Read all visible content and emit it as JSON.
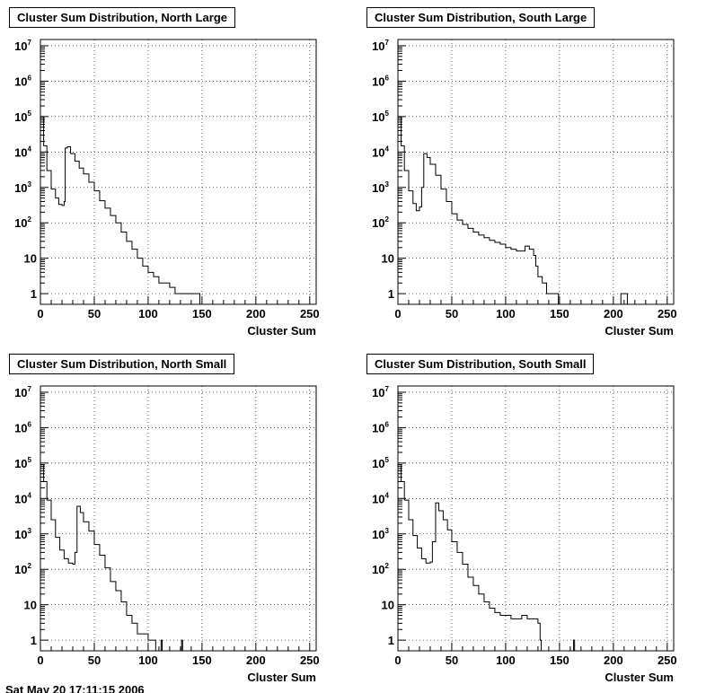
{
  "footer_text": "Sat May 20 17:11:15 2006",
  "chart_data": [
    {
      "type": "histogram",
      "title": "Cluster Sum Distribution, North Large",
      "xlabel": "Cluster Sum",
      "ylabel": "",
      "xlim": [
        0,
        256
      ],
      "ylim": [
        0.5,
        15000000
      ],
      "log_y": true,
      "grid": true,
      "x_ticks": [
        0,
        50,
        100,
        150,
        200,
        250
      ],
      "y_ticks": [
        "1",
        "10",
        "10^2",
        "10^3",
        "10^4",
        "10^5",
        "10^6",
        "10^7"
      ],
      "points": [
        [
          0,
          100000
        ],
        [
          3,
          15000
        ],
        [
          6,
          3000
        ],
        [
          10,
          900
        ],
        [
          14,
          500
        ],
        [
          17,
          330
        ],
        [
          20,
          310
        ],
        [
          22,
          400
        ],
        [
          23,
          13000
        ],
        [
          25,
          14000
        ],
        [
          28,
          9000
        ],
        [
          32,
          5500
        ],
        [
          36,
          3500
        ],
        [
          40,
          2400
        ],
        [
          45,
          1400
        ],
        [
          50,
          800
        ],
        [
          55,
          420
        ],
        [
          60,
          260
        ],
        [
          65,
          160
        ],
        [
          70,
          100
        ],
        [
          75,
          55
        ],
        [
          80,
          30
        ],
        [
          85,
          18
        ],
        [
          90,
          10
        ],
        [
          95,
          6
        ],
        [
          100,
          4
        ],
        [
          105,
          3
        ],
        [
          110,
          2
        ],
        [
          115,
          2
        ],
        [
          120,
          1.5
        ],
        [
          125,
          1
        ],
        [
          130,
          1
        ],
        [
          140,
          1
        ],
        [
          147,
          1
        ],
        [
          148,
          0.5
        ],
        [
          256,
          0.5
        ]
      ]
    },
    {
      "type": "histogram",
      "title": "Cluster Sum Distribution, South Large",
      "xlabel": "Cluster Sum",
      "ylabel": "",
      "xlim": [
        0,
        256
      ],
      "ylim": [
        0.5,
        15000000
      ],
      "log_y": true,
      "grid": true,
      "x_ticks": [
        0,
        50,
        100,
        150,
        200,
        250
      ],
      "y_ticks": [
        "1",
        "10",
        "10^2",
        "10^3",
        "10^4",
        "10^5",
        "10^6",
        "10^7"
      ],
      "points": [
        [
          0,
          100000
        ],
        [
          3,
          15000
        ],
        [
          6,
          3000
        ],
        [
          10,
          800
        ],
        [
          14,
          350
        ],
        [
          17,
          220
        ],
        [
          20,
          280
        ],
        [
          22,
          1000
        ],
        [
          24,
          9000
        ],
        [
          27,
          7000
        ],
        [
          30,
          4500
        ],
        [
          35,
          2200
        ],
        [
          40,
          900
        ],
        [
          45,
          400
        ],
        [
          50,
          180
        ],
        [
          55,
          120
        ],
        [
          60,
          90
        ],
        [
          65,
          70
        ],
        [
          70,
          55
        ],
        [
          75,
          45
        ],
        [
          80,
          38
        ],
        [
          85,
          32
        ],
        [
          90,
          28
        ],
        [
          95,
          25
        ],
        [
          100,
          20
        ],
        [
          105,
          18
        ],
        [
          110,
          16
        ],
        [
          115,
          16
        ],
        [
          118,
          22
        ],
        [
          122,
          18
        ],
        [
          126,
          12
        ],
        [
          128,
          6
        ],
        [
          130,
          3
        ],
        [
          134,
          2
        ],
        [
          138,
          1
        ],
        [
          148,
          1
        ],
        [
          149,
          0.5
        ],
        [
          206,
          0.5
        ],
        [
          207,
          1
        ],
        [
          212,
          1
        ],
        [
          213,
          0.5
        ],
        [
          256,
          0.5
        ]
      ]
    },
    {
      "type": "histogram",
      "title": "Cluster Sum Distribution, North Small",
      "xlabel": "Cluster Sum",
      "ylabel": "",
      "xlim": [
        0,
        256
      ],
      "ylim": [
        0.5,
        15000000
      ],
      "log_y": true,
      "grid": true,
      "x_ticks": [
        0,
        50,
        100,
        150,
        200,
        250
      ],
      "y_ticks": [
        "1",
        "10",
        "10^2",
        "10^3",
        "10^4",
        "10^5",
        "10^6",
        "10^7"
      ],
      "points": [
        [
          0,
          90000
        ],
        [
          3,
          30000
        ],
        [
          6,
          9000
        ],
        [
          10,
          2500
        ],
        [
          14,
          800
        ],
        [
          18,
          350
        ],
        [
          22,
          200
        ],
        [
          26,
          150
        ],
        [
          30,
          140
        ],
        [
          32,
          300
        ],
        [
          34,
          6000
        ],
        [
          37,
          4000
        ],
        [
          40,
          2200
        ],
        [
          45,
          1200
        ],
        [
          50,
          500
        ],
        [
          55,
          250
        ],
        [
          60,
          110
        ],
        [
          65,
          45
        ],
        [
          70,
          25
        ],
        [
          75,
          12
        ],
        [
          80,
          5
        ],
        [
          85,
          3
        ],
        [
          90,
          1.5
        ],
        [
          95,
          1.5
        ],
        [
          100,
          1
        ],
        [
          106,
          1
        ],
        [
          107,
          0.5
        ],
        [
          110,
          0.5
        ],
        [
          112,
          1
        ],
        [
          113,
          0.5
        ],
        [
          130,
          0.5
        ],
        [
          131,
          1
        ],
        [
          132,
          0.5
        ],
        [
          256,
          0.5
        ]
      ]
    },
    {
      "type": "histogram",
      "title": "Cluster Sum Distribution, South Small",
      "xlabel": "Cluster Sum",
      "ylabel": "",
      "xlim": [
        0,
        256
      ],
      "ylim": [
        0.5,
        15000000
      ],
      "log_y": true,
      "grid": true,
      "x_ticks": [
        0,
        50,
        100,
        150,
        200,
        250
      ],
      "y_ticks": [
        "1",
        "10",
        "10^2",
        "10^3",
        "10^4",
        "10^5",
        "10^6",
        "10^7"
      ],
      "points": [
        [
          0,
          90000
        ],
        [
          3,
          30000
        ],
        [
          6,
          9000
        ],
        [
          10,
          2500
        ],
        [
          14,
          900
        ],
        [
          18,
          400
        ],
        [
          22,
          200
        ],
        [
          26,
          150
        ],
        [
          30,
          160
        ],
        [
          32,
          600
        ],
        [
          35,
          7500
        ],
        [
          38,
          4500
        ],
        [
          42,
          2500
        ],
        [
          46,
          1300
        ],
        [
          50,
          600
        ],
        [
          55,
          300
        ],
        [
          60,
          140
        ],
        [
          65,
          60
        ],
        [
          70,
          35
        ],
        [
          75,
          20
        ],
        [
          80,
          12
        ],
        [
          85,
          8
        ],
        [
          90,
          6
        ],
        [
          95,
          5
        ],
        [
          100,
          5
        ],
        [
          105,
          4
        ],
        [
          110,
          4
        ],
        [
          115,
          5
        ],
        [
          120,
          4
        ],
        [
          125,
          4
        ],
        [
          130,
          3
        ],
        [
          132,
          1
        ],
        [
          133,
          0.5
        ],
        [
          162,
          0.5
        ],
        [
          163,
          1
        ],
        [
          164,
          0.5
        ],
        [
          256,
          0.5
        ]
      ]
    }
  ]
}
